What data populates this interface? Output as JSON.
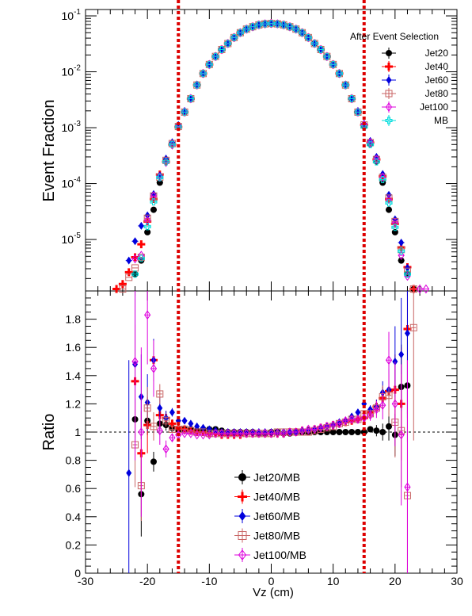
{
  "chart_data": [
    {
      "panel": "top",
      "type": "scatter",
      "ylabel": "Event Fraction",
      "yscale": "log",
      "ylim": [
        1.2e-06,
        0.13
      ],
      "xlim": [
        -30,
        30
      ],
      "y_tick_labels": [
        {
          "base": "10",
          "exp": "-1"
        },
        {
          "base": "10",
          "exp": "-2"
        },
        {
          "base": "10",
          "exp": "-3"
        },
        {
          "base": "10",
          "exp": "-4"
        },
        {
          "base": "10",
          "exp": "-5"
        }
      ],
      "y_tick_values": [
        0.1,
        0.01,
        0.001,
        0.0001,
        1e-05
      ],
      "legend_header": "After Event Selection",
      "legend_position": "top-right",
      "x": [
        -25,
        -24,
        -23,
        -22,
        -21,
        -20,
        -19,
        -18,
        -17,
        -16,
        -15,
        -14,
        -13,
        -12,
        -11,
        -10,
        -9,
        -8,
        -7,
        -6,
        -5,
        -4,
        -3,
        -2,
        -1,
        0,
        1,
        2,
        3,
        4,
        5,
        6,
        7,
        8,
        9,
        10,
        11,
        12,
        13,
        14,
        15,
        16,
        17,
        18,
        19,
        20,
        21,
        22,
        23,
        24,
        25
      ],
      "series": [
        {
          "name": "Jet20",
          "color": "#000000",
          "marker": "circle",
          "values": [
            null,
            null,
            null,
            2.4e-06,
            4.2e-06,
            1.35e-05,
            3.4e-05,
            0.000104,
            0.00025,
            0.00051,
            0.00105,
            0.0019,
            0.0033,
            0.0058,
            0.0093,
            0.0135,
            0.0188,
            0.025,
            0.032,
            0.041,
            0.05,
            0.058,
            0.064,
            0.069,
            0.072,
            0.073,
            0.072,
            0.069,
            0.064,
            0.058,
            0.05,
            0.041,
            0.032,
            0.025,
            0.0188,
            0.0135,
            0.0093,
            0.0058,
            0.0033,
            0.0019,
            0.00105,
            0.00051,
            0.00025,
            0.000104,
            3.4e-05,
            1.35e-05,
            4.2e-06,
            2.4e-06,
            1.3e-06,
            null,
            null
          ]
        },
        {
          "name": "Jet40",
          "color": "#ff0000",
          "marker": "plus",
          "values": [
            1.3e-06,
            1.6e-06,
            2.6e-06,
            4.8e-06,
            8.2e-06,
            2.1e-05,
            5.3e-05,
            0.000145,
            0.000245,
            0.0005,
            0.00103,
            0.0019,
            0.0033,
            0.0058,
            0.0093,
            0.0135,
            0.0188,
            0.025,
            0.032,
            0.041,
            0.05,
            0.058,
            0.064,
            0.069,
            0.072,
            0.073,
            0.072,
            0.069,
            0.064,
            0.058,
            0.05,
            0.041,
            0.032,
            0.025,
            0.0188,
            0.0135,
            0.0093,
            0.0058,
            0.0033,
            0.0019,
            0.00112,
            0.00054,
            0.00027,
            0.000135,
            5.3e-05,
            1.9e-05,
            7.2e-06,
            3.2e-06,
            1.3e-06,
            null,
            null
          ]
        },
        {
          "name": "Jet60",
          "color": "#0000dd",
          "marker": "diamond",
          "values": [
            null,
            null,
            4.2e-06,
            9.3e-06,
            1.75e-05,
            2.7e-05,
            6.5e-05,
            0.00014,
            0.00028,
            0.00055,
            0.00112,
            0.002,
            0.0034,
            0.0059,
            0.0094,
            0.0136,
            0.019,
            0.0252,
            0.0322,
            0.0412,
            0.0502,
            0.0582,
            0.0642,
            0.0692,
            0.0722,
            0.0732,
            0.0722,
            0.0692,
            0.0642,
            0.0582,
            0.0502,
            0.0412,
            0.0322,
            0.0252,
            0.019,
            0.0136,
            0.0094,
            0.0059,
            0.0034,
            0.002,
            0.00118,
            0.00058,
            0.0003,
            0.000148,
            6.3e-05,
            2.3e-05,
            8.8e-06,
            3.1e-06,
            null,
            null,
            null
          ]
        },
        {
          "name": "Jet80",
          "color": "#c86464",
          "marker": "open-square",
          "values": [
            null,
            1.3e-06,
            2.1e-06,
            3.1e-06,
            4.8e-06,
            2.4e-05,
            6e-05,
            0.00013,
            0.00026,
            0.00052,
            0.00105,
            0.0019,
            0.0033,
            0.0058,
            0.0093,
            0.0135,
            0.0188,
            0.025,
            0.032,
            0.041,
            0.05,
            0.058,
            0.064,
            0.069,
            0.072,
            0.073,
            0.072,
            0.069,
            0.064,
            0.058,
            0.05,
            0.041,
            0.032,
            0.025,
            0.0188,
            0.0135,
            0.0093,
            0.0058,
            0.0033,
            0.0019,
            0.00112,
            0.00054,
            0.00027,
            0.00013,
            5.5e-05,
            2.1e-05,
            6.6e-06,
            2.7e-06,
            1.3e-06,
            null,
            null
          ]
        },
        {
          "name": "Jet100",
          "color": "#dd00dd",
          "marker": "open-diamond",
          "values": [
            null,
            null,
            null,
            4.5e-06,
            5.2e-06,
            2.2e-05,
            6e-05,
            0.00013,
            0.00024,
            0.00049,
            0.00105,
            0.0019,
            0.0033,
            0.0058,
            0.0093,
            0.0135,
            0.0188,
            0.025,
            0.032,
            0.041,
            0.05,
            0.058,
            0.064,
            0.069,
            0.072,
            0.073,
            0.072,
            0.069,
            0.064,
            0.058,
            0.05,
            0.041,
            0.032,
            0.025,
            0.0188,
            0.0135,
            0.0093,
            0.0058,
            0.0033,
            0.0019,
            0.00112,
            0.00054,
            0.00027,
            0.00013,
            5.2e-05,
            2e-05,
            5.2e-06,
            2.2e-06,
            null,
            1.3e-06,
            1.3e-06
          ]
        },
        {
          "name": "MB",
          "color": "#00dddd",
          "marker": "open-cross",
          "values": [
            null,
            null,
            null,
            2.4e-06,
            4.6e-06,
            1.7e-05,
            4.7e-05,
            0.000128,
            0.000245,
            0.0005,
            0.00103,
            0.0019,
            0.0033,
            0.0058,
            0.0093,
            0.0135,
            0.0188,
            0.025,
            0.032,
            0.041,
            0.05,
            0.058,
            0.064,
            0.069,
            0.072,
            0.073,
            0.072,
            0.069,
            0.064,
            0.058,
            0.05,
            0.041,
            0.032,
            0.025,
            0.0188,
            0.0135,
            0.0093,
            0.0058,
            0.0033,
            0.0019,
            0.00103,
            0.0005,
            0.000245,
            0.000118,
            4.5e-05,
            1.65e-05,
            6.2e-06,
            2.4e-06,
            null,
            null,
            null
          ]
        }
      ],
      "cut_lines_x": [
        -15,
        15
      ]
    },
    {
      "panel": "bottom",
      "type": "scatter",
      "ylabel": "Ratio",
      "xlabel": "Vz (cm)",
      "xlim": [
        -30,
        30
      ],
      "ylim": [
        0,
        2
      ],
      "x_ticks": [
        -30,
        -20,
        -10,
        0,
        10,
        20,
        30
      ],
      "x_tick_labels": [
        "-30",
        "-20",
        "-10",
        "0",
        "10",
        "20",
        "30"
      ],
      "y_ticks": [
        0,
        0.2,
        0.4,
        0.6,
        0.8,
        1,
        1.2,
        1.4,
        1.6,
        1.8
      ],
      "y_tick_labels": [
        "0",
        "0.2",
        "0.4",
        "0.6",
        "0.8",
        "1",
        "1.2",
        "1.4",
        "1.6",
        "1.8"
      ],
      "reference_line": 1,
      "legend_position": "bottom-center",
      "x": [
        -23,
        -22,
        -21,
        -20,
        -19,
        -18,
        -17,
        -16,
        -15,
        -14,
        -13,
        -12,
        -11,
        -10,
        -9,
        -8,
        -7,
        -6,
        -5,
        -4,
        -3,
        -2,
        -1,
        0,
        1,
        2,
        3,
        4,
        5,
        6,
        7,
        8,
        9,
        10,
        11,
        12,
        13,
        14,
        15,
        16,
        17,
        18,
        19,
        20,
        21,
        22,
        23
      ],
      "series": [
        {
          "name": "Jet20/MB",
          "color": "#000000",
          "marker": "circle",
          "values": [
            null,
            1.09,
            0.56,
            1.08,
            0.79,
            1.06,
            1.05,
            1.03,
            1.01,
            1.02,
            1.02,
            1.01,
            1.02,
            1.02,
            1.02,
            1.01,
            1.0,
            1.0,
            1.0,
            1.0,
            1.0,
            0.99,
            0.99,
            1.0,
            1.0,
            0.99,
            0.99,
            1.0,
            1.0,
            1.0,
            1.0,
            1.0,
            1.0,
            1.0,
            1.0,
            1.0,
            1.0,
            1.0,
            1.0,
            1.02,
            1.01,
            1.0,
            1.04,
            0.98,
            1.32,
            1.33,
            null
          ],
          "errors": [
            null,
            0.15,
            0.3,
            0.1,
            0.07,
            0.05,
            0.04,
            0.02,
            0.01,
            0.01,
            0.01,
            0.01,
            0.01,
            0.01,
            0.01,
            0.01,
            0.01,
            0.01,
            0.01,
            0.01,
            0.01,
            0.01,
            0.01,
            0.01,
            0.01,
            0.01,
            0.01,
            0.01,
            0.01,
            0.01,
            0.01,
            0.01,
            0.01,
            0.01,
            0.01,
            0.01,
            0.01,
            0.01,
            0.01,
            0.02,
            0.04,
            0.06,
            0.1,
            0.15,
            0.3,
            0.4,
            null
          ]
        },
        {
          "name": "Jet40/MB",
          "color": "#ff0000",
          "marker": "plus",
          "values": [
            null,
            1.36,
            0.85,
            1.05,
            1.51,
            1.12,
            1.1,
            1.06,
            1.03,
            1.02,
            1.01,
            1.0,
            1.0,
            0.99,
            0.99,
            0.98,
            0.98,
            0.98,
            0.98,
            0.99,
            0.99,
            0.99,
            0.99,
            0.99,
            0.99,
            0.99,
            1.0,
            1.0,
            1.01,
            1.01,
            1.02,
            1.03,
            1.04,
            1.05,
            1.06,
            1.07,
            1.08,
            1.09,
            1.1,
            1.14,
            1.18,
            1.24,
            1.29,
            1.3,
            1.2,
            1.73,
            null
          ],
          "errors": [
            null,
            0.4,
            0.3,
            0.2,
            0.15,
            0.08,
            0.05,
            0.03,
            0.02,
            0.01,
            0.01,
            0.01,
            0.01,
            0.01,
            0.01,
            0.01,
            0.01,
            0.01,
            0.01,
            0.01,
            0.01,
            0.01,
            0.01,
            0.01,
            0.01,
            0.01,
            0.01,
            0.01,
            0.01,
            0.01,
            0.01,
            0.01,
            0.01,
            0.01,
            0.01,
            0.01,
            0.01,
            0.02,
            0.02,
            0.03,
            0.05,
            0.08,
            0.15,
            0.25,
            0.4,
            0.6,
            null
          ]
        },
        {
          "name": "Jet60/MB",
          "color": "#0000dd",
          "marker": "diamond",
          "values": [
            0.71,
            1.48,
            1.25,
            1.21,
            1.51,
            1.17,
            1.1,
            1.14,
            1.08,
            1.08,
            1.06,
            1.04,
            1.03,
            1.02,
            1.01,
            1.0,
            1.0,
            1.0,
            1.0,
            1.0,
            1.0,
            1.0,
            1.0,
            1.0,
            1.0,
            1.0,
            1.0,
            1.0,
            1.01,
            1.01,
            1.02,
            1.03,
            1.04,
            1.05,
            1.07,
            1.08,
            1.11,
            1.14,
            1.2,
            1.16,
            1.18,
            1.28,
            1.3,
            1.5,
            1.55,
            1.7,
            null
          ],
          "errors": [
            0.8,
            0.6,
            0.3,
            0.2,
            0.15,
            0.08,
            0.05,
            0.03,
            0.02,
            0.01,
            0.01,
            0.01,
            0.01,
            0.01,
            0.01,
            0.01,
            0.01,
            0.01,
            0.01,
            0.01,
            0.01,
            0.01,
            0.01,
            0.01,
            0.01,
            0.01,
            0.01,
            0.01,
            0.01,
            0.01,
            0.01,
            0.01,
            0.01,
            0.01,
            0.01,
            0.01,
            0.02,
            0.02,
            0.03,
            0.03,
            0.05,
            0.08,
            0.15,
            0.25,
            0.4,
            0.6,
            null
          ]
        },
        {
          "name": "Jet80/MB",
          "color": "#c86464",
          "marker": "open-square",
          "values": [
            null,
            0.91,
            0.62,
            1.17,
            1.04,
            1.27,
            1.08,
            1.02,
            1.02,
            1.02,
            1.01,
            1.0,
            1.0,
            0.99,
            0.99,
            0.99,
            0.99,
            0.99,
            0.99,
            0.99,
            0.99,
            0.99,
            0.99,
            0.99,
            1.0,
            1.0,
            1.0,
            1.0,
            1.0,
            1.0,
            1.01,
            1.02,
            1.03,
            1.04,
            1.06,
            1.07,
            1.09,
            1.09,
            1.13,
            1.13,
            1.17,
            1.25,
            1.26,
            1.07,
            1.01,
            0.55,
            1.74
          ],
          "errors": [
            null,
            0.3,
            0.25,
            0.15,
            0.1,
            0.07,
            0.04,
            0.02,
            0.02,
            0.01,
            0.01,
            0.01,
            0.01,
            0.01,
            0.01,
            0.01,
            0.01,
            0.01,
            0.01,
            0.01,
            0.01,
            0.01,
            0.01,
            0.01,
            0.01,
            0.01,
            0.01,
            0.01,
            0.01,
            0.01,
            0.01,
            0.01,
            0.01,
            0.01,
            0.01,
            0.01,
            0.01,
            0.02,
            0.02,
            0.03,
            0.05,
            0.08,
            0.15,
            0.25,
            0.4,
            0.6,
            0.8
          ]
        },
        {
          "name": "Jet100/MB",
          "color": "#dd00dd",
          "marker": "open-diamond",
          "values": [
            null,
            1.5,
            1.0,
            1.83,
            1.45,
            1.01,
            0.88,
            0.96,
            0.98,
            0.99,
            0.99,
            0.98,
            0.98,
            0.98,
            0.99,
            0.99,
            0.99,
            0.99,
            0.99,
            0.99,
            0.99,
            0.99,
            0.99,
            0.99,
            0.99,
            0.99,
            1.0,
            1.0,
            1.01,
            1.02,
            1.02,
            1.03,
            1.04,
            1.05,
            1.06,
            1.08,
            1.09,
            1.09,
            1.1,
            1.12,
            1.16,
            1.19,
            1.51,
            1.2,
            0.98,
            0.61,
            null
          ],
          "errors": [
            null,
            0.7,
            0.6,
            0.35,
            0.2,
            0.1,
            0.06,
            0.03,
            0.02,
            0.01,
            0.01,
            0.01,
            0.01,
            0.01,
            0.01,
            0.01,
            0.01,
            0.01,
            0.01,
            0.01,
            0.01,
            0.01,
            0.01,
            0.01,
            0.01,
            0.01,
            0.01,
            0.01,
            0.01,
            0.01,
            0.01,
            0.01,
            0.01,
            0.01,
            0.01,
            0.02,
            0.02,
            0.02,
            0.03,
            0.04,
            0.06,
            0.1,
            0.2,
            0.3,
            0.5,
            0.9,
            null
          ]
        }
      ],
      "cut_lines_x": [
        -15,
        15
      ],
      "cut_line_color": "#dd0000"
    }
  ]
}
